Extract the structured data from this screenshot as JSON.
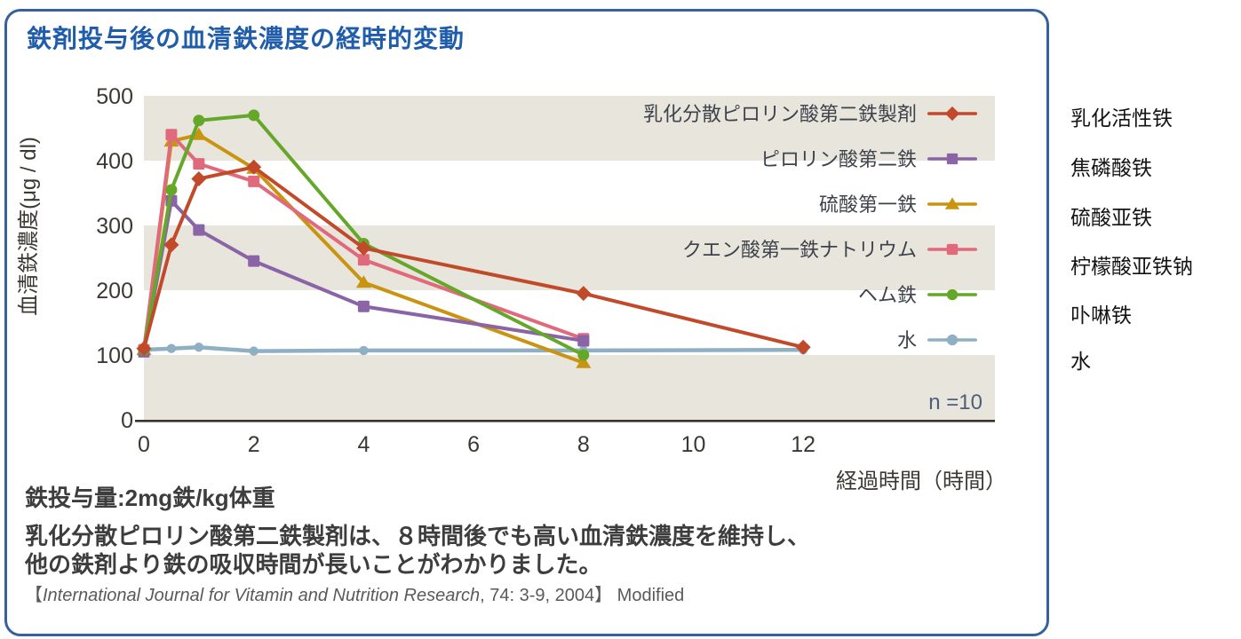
{
  "card": {
    "title": "鉄剤投与後の血清鉄濃度の経時的変動",
    "dose_note": "鉄投与量:2mg鉄/kg体重",
    "body_line1": "乳化分散ピロリン酸第二鉄製剤は、８時間後でも高い血清鉄濃度を維持し、",
    "body_line2": "他の鉄剤より鉄の吸収時間が長いことがわかりました。",
    "citation_prefix": "【",
    "citation_italic": "International Journal for Vitamin and Nutrition Research",
    "citation_rest": ", 74: 3-9, 2004】 Modified"
  },
  "annotations": {
    "items": [
      "乳化活性铁",
      "焦磷酸铁",
      "硫酸亚铁",
      "柠檬酸亚铁钠",
      "卟啉铁",
      "水"
    ],
    "tops": [
      114,
      170,
      226,
      281,
      336,
      388
    ]
  },
  "chart_data": {
    "type": "line",
    "title": "鉄剤投与後の血清鉄濃度の経時的変動",
    "xlabel": "経過時間（時間）",
    "ylabel": "血清鉄濃度(μg / dl)",
    "xlim": [
      0,
      15.5
    ],
    "ylim": [
      0,
      500
    ],
    "x_ticks": [
      0,
      2,
      4,
      6,
      8,
      10,
      12
    ],
    "y_ticks": [
      0,
      100,
      200,
      300,
      400,
      500
    ],
    "grid": "horizontal shaded bands",
    "bands": [
      [
        0,
        100
      ],
      [
        200,
        300
      ],
      [
        400,
        500
      ]
    ],
    "band_color": "#e8e5dd",
    "axis_color": "#39332e",
    "tick_color": "#3c3933",
    "legend_text_color": "#3e434b",
    "legend_position": "inside top right",
    "sample_note": "n =10",
    "sample_note_color": "#4d5f79",
    "series": [
      {
        "name": "水",
        "color": "#8fb0c3",
        "marker": "circle",
        "msize": 0.8,
        "width": 4.5,
        "points": [
          [
            0,
            108
          ],
          [
            0.5,
            110
          ],
          [
            1,
            112
          ],
          [
            2,
            106
          ],
          [
            4,
            107
          ],
          [
            8,
            107
          ],
          [
            12,
            108
          ]
        ]
      },
      {
        "name": "硫酸第一鉄",
        "color": "#c9940f",
        "marker": "triangle",
        "msize": 1,
        "width": 4,
        "points": [
          [
            0,
            108
          ],
          [
            0.5,
            430
          ],
          [
            1,
            440
          ],
          [
            2,
            388
          ],
          [
            4,
            212
          ],
          [
            8,
            88
          ]
        ]
      },
      {
        "name": "クエン酸第一鉄ナトリウム",
        "color": "#e06a7c",
        "marker": "square",
        "msize": 1,
        "width": 4,
        "points": [
          [
            0,
            108
          ],
          [
            0.5,
            440
          ],
          [
            1,
            395
          ],
          [
            2,
            368
          ],
          [
            4,
            247
          ],
          [
            8,
            125
          ]
        ]
      },
      {
        "name": "ピロリン酸第二鉄",
        "color": "#8a64a7",
        "marker": "square",
        "msize": 1,
        "width": 4,
        "points": [
          [
            0,
            105
          ],
          [
            0.5,
            338
          ],
          [
            1,
            293
          ],
          [
            2,
            245
          ],
          [
            4,
            175
          ],
          [
            8,
            122
          ]
        ]
      },
      {
        "name": "ヘム鉄",
        "color": "#65a829",
        "marker": "circle",
        "msize": 1,
        "width": 4,
        "points": [
          [
            0,
            108
          ],
          [
            0.5,
            355
          ],
          [
            1,
            462
          ],
          [
            2,
            470
          ],
          [
            4,
            272
          ],
          [
            8,
            100
          ]
        ]
      },
      {
        "name": "乳化分散ピロリン酸第二鉄製剤",
        "color": "#c14a2a",
        "marker": "diamond",
        "msize": 1,
        "width": 4,
        "points": [
          [
            0,
            110
          ],
          [
            0.5,
            270
          ],
          [
            1,
            372
          ],
          [
            2,
            390
          ],
          [
            4,
            265
          ],
          [
            8,
            195
          ],
          [
            12,
            112
          ]
        ]
      }
    ],
    "legend_order": [
      5,
      3,
      1,
      2,
      4,
      0
    ]
  }
}
